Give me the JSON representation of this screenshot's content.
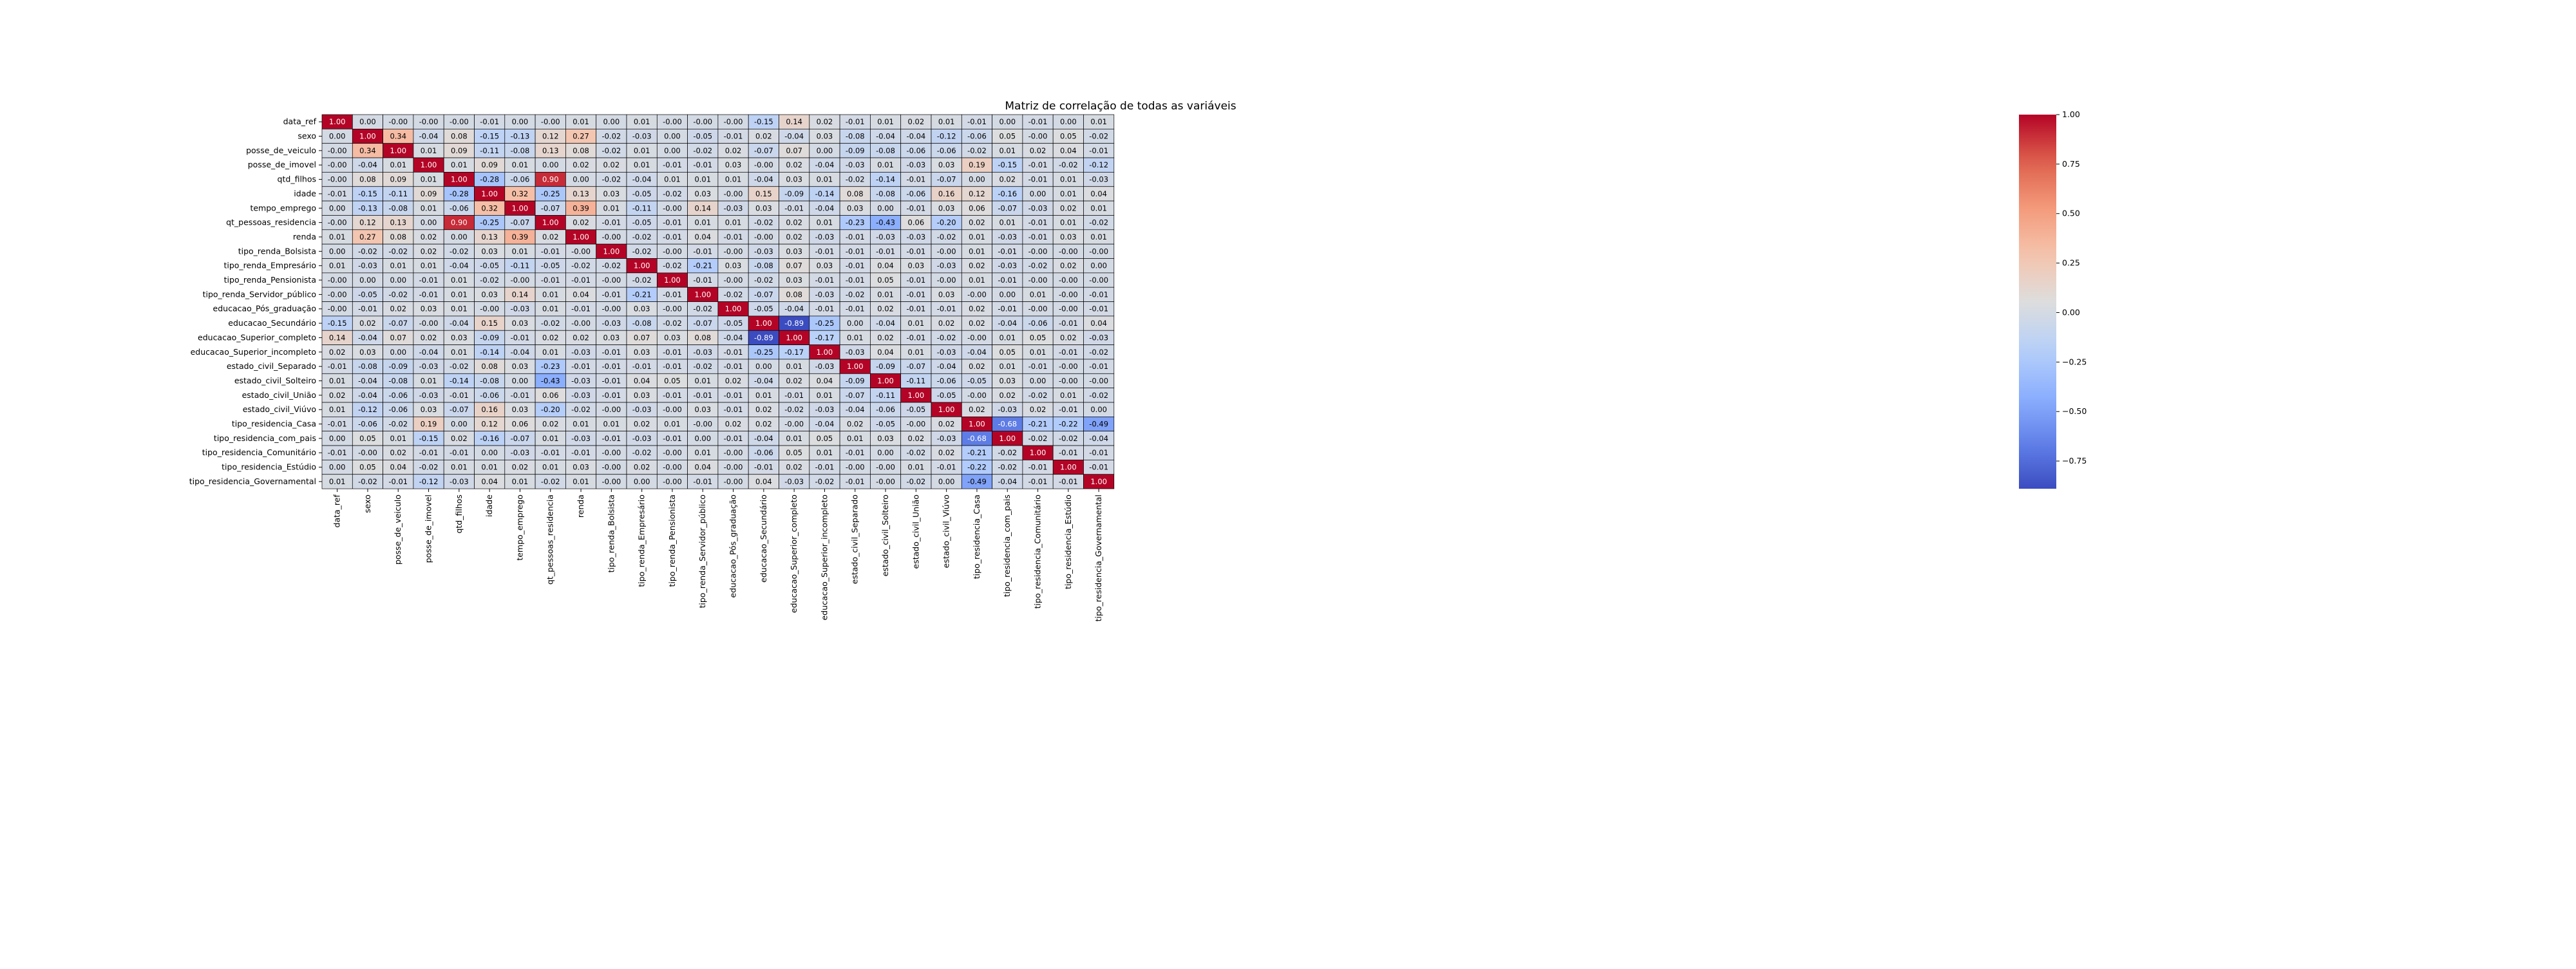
{
  "chart_data": {
    "type": "heatmap",
    "title": "Matriz de correlação de todas as variáveis",
    "row_labels": [
      "data_ref",
      "sexo",
      "posse_de_veiculo",
      "posse_de_imovel",
      "qtd_filhos",
      "idade",
      "tempo_emprego",
      "qt_pessoas_residencia",
      "renda",
      "tipo_renda_Bolsista",
      "tipo_renda_Empresário",
      "tipo_renda_Pensionista",
      "tipo_renda_Servidor_público",
      "educacao_Pós_graduação",
      "educacao_Secundário",
      "educacao_Superior_completo",
      "educacao_Superior_incompleto",
      "estado_civil_Separado",
      "estado_civil_Solteiro",
      "estado_civil_União",
      "estado_civil_Viúvo",
      "tipo_residencia_Casa",
      "tipo_residencia_com_pais",
      "tipo_residencia_Comunitário",
      "tipo_residencia_Estúdio",
      "tipo_residencia_Governamental"
    ],
    "col_labels": [
      "data_ref",
      "sexo",
      "posse_de_veiculo",
      "posse_de_imovel",
      "qtd_filhos",
      "idade",
      "tempo_emprego",
      "qt_pessoas_residencia",
      "renda",
      "tipo_renda_Bolsista",
      "tipo_renda_Empresário",
      "tipo_renda_Pensionista",
      "tipo_renda_Servidor_público",
      "educacao_Pós_graduação",
      "educacao_Secundário",
      "educacao_Superior_completo",
      "educacao_Superior_incompleto",
      "estado_civil_Separado",
      "estado_civil_Solteiro",
      "estado_civil_União",
      "estado_civil_Viúvo",
      "tipo_residencia_Casa",
      "tipo_residencia_com_pais",
      "tipo_residencia_Comunitário",
      "tipo_residencia_Estúdio",
      "tipo_residencia_Governamental"
    ],
    "values": [
      [
        "1.00",
        "0.00",
        "-0.00",
        "-0.00",
        "-0.00",
        "-0.01",
        "0.00",
        "-0.00",
        "0.01",
        "0.00",
        "0.01",
        "-0.00",
        "-0.00",
        "-0.00",
        "-0.15",
        "0.14",
        "0.02",
        "-0.01",
        "0.01",
        "0.02",
        "0.01",
        "-0.01",
        "0.00",
        "-0.01",
        "0.00",
        "0.01"
      ],
      [
        "0.00",
        "1.00",
        "0.34",
        "-0.04",
        "0.08",
        "-0.15",
        "-0.13",
        "0.12",
        "0.27",
        "-0.02",
        "-0.03",
        "0.00",
        "-0.05",
        "-0.01",
        "0.02",
        "-0.04",
        "0.03",
        "-0.08",
        "-0.04",
        "-0.04",
        "-0.12",
        "-0.06",
        "0.05",
        "-0.00",
        "0.05",
        "-0.02"
      ],
      [
        "-0.00",
        "0.34",
        "1.00",
        "0.01",
        "0.09",
        "-0.11",
        "-0.08",
        "0.13",
        "0.08",
        "-0.02",
        "0.01",
        "0.00",
        "-0.02",
        "0.02",
        "-0.07",
        "0.07",
        "0.00",
        "-0.09",
        "-0.08",
        "-0.06",
        "-0.06",
        "-0.02",
        "0.01",
        "0.02",
        "0.04",
        "-0.01"
      ],
      [
        "-0.00",
        "-0.04",
        "0.01",
        "1.00",
        "0.01",
        "0.09",
        "0.01",
        "0.00",
        "0.02",
        "0.02",
        "0.01",
        "-0.01",
        "-0.01",
        "0.03",
        "-0.00",
        "0.02",
        "-0.04",
        "-0.03",
        "0.01",
        "-0.03",
        "0.03",
        "0.19",
        "-0.15",
        "-0.01",
        "-0.02",
        "-0.12"
      ],
      [
        "-0.00",
        "0.08",
        "0.09",
        "0.01",
        "1.00",
        "-0.28",
        "-0.06",
        "0.90",
        "0.00",
        "-0.02",
        "-0.04",
        "0.01",
        "0.01",
        "0.01",
        "-0.04",
        "0.03",
        "0.01",
        "-0.02",
        "-0.14",
        "-0.01",
        "-0.07",
        "0.00",
        "0.02",
        "-0.01",
        "0.01",
        "-0.03"
      ],
      [
        "-0.01",
        "-0.15",
        "-0.11",
        "0.09",
        "-0.28",
        "1.00",
        "0.32",
        "-0.25",
        "0.13",
        "0.03",
        "-0.05",
        "-0.02",
        "0.03",
        "-0.00",
        "0.15",
        "-0.09",
        "-0.14",
        "0.08",
        "-0.08",
        "-0.06",
        "0.16",
        "0.12",
        "-0.16",
        "0.00",
        "0.01",
        "0.04"
      ],
      [
        "0.00",
        "-0.13",
        "-0.08",
        "0.01",
        "-0.06",
        "0.32",
        "1.00",
        "-0.07",
        "0.39",
        "0.01",
        "-0.11",
        "-0.00",
        "0.14",
        "-0.03",
        "0.03",
        "-0.01",
        "-0.04",
        "0.03",
        "0.00",
        "-0.01",
        "0.03",
        "0.06",
        "-0.07",
        "-0.03",
        "0.02",
        "0.01"
      ],
      [
        "-0.00",
        "0.12",
        "0.13",
        "0.00",
        "0.90",
        "-0.25",
        "-0.07",
        "1.00",
        "0.02",
        "-0.01",
        "-0.05",
        "-0.01",
        "0.01",
        "0.01",
        "-0.02",
        "0.02",
        "0.01",
        "-0.23",
        "-0.43",
        "0.06",
        "-0.20",
        "0.02",
        "0.01",
        "-0.01",
        "0.01",
        "-0.02"
      ],
      [
        "0.01",
        "0.27",
        "0.08",
        "0.02",
        "0.00",
        "0.13",
        "0.39",
        "0.02",
        "1.00",
        "-0.00",
        "-0.02",
        "-0.01",
        "0.04",
        "-0.01",
        "-0.00",
        "0.02",
        "-0.03",
        "-0.01",
        "-0.03",
        "-0.03",
        "-0.02",
        "0.01",
        "-0.03",
        "-0.01",
        "0.03",
        "0.01"
      ],
      [
        "0.00",
        "-0.02",
        "-0.02",
        "0.02",
        "-0.02",
        "0.03",
        "0.01",
        "-0.01",
        "-0.00",
        "1.00",
        "-0.02",
        "-0.00",
        "-0.01",
        "-0.00",
        "-0.03",
        "0.03",
        "-0.01",
        "-0.01",
        "-0.01",
        "-0.01",
        "-0.00",
        "0.01",
        "-0.01",
        "-0.00",
        "-0.00",
        "-0.00"
      ],
      [
        "0.01",
        "-0.03",
        "0.01",
        "0.01",
        "-0.04",
        "-0.05",
        "-0.11",
        "-0.05",
        "-0.02",
        "-0.02",
        "1.00",
        "-0.02",
        "-0.21",
        "0.03",
        "-0.08",
        "0.07",
        "0.03",
        "-0.01",
        "0.04",
        "0.03",
        "-0.03",
        "0.02",
        "-0.03",
        "-0.02",
        "0.02",
        "0.00"
      ],
      [
        "-0.00",
        "0.00",
        "0.00",
        "-0.01",
        "0.01",
        "-0.02",
        "-0.00",
        "-0.01",
        "-0.01",
        "-0.00",
        "-0.02",
        "1.00",
        "-0.01",
        "-0.00",
        "-0.02",
        "0.03",
        "-0.01",
        "-0.01",
        "0.05",
        "-0.01",
        "-0.00",
        "0.01",
        "-0.01",
        "-0.00",
        "-0.00",
        "-0.00"
      ],
      [
        "-0.00",
        "-0.05",
        "-0.02",
        "-0.01",
        "0.01",
        "0.03",
        "0.14",
        "0.01",
        "0.04",
        "-0.01",
        "-0.21",
        "-0.01",
        "1.00",
        "-0.02",
        "-0.07",
        "0.08",
        "-0.03",
        "-0.02",
        "0.01",
        "-0.01",
        "0.03",
        "-0.00",
        "0.00",
        "0.01",
        "-0.00",
        "-0.01"
      ],
      [
        "-0.00",
        "-0.01",
        "0.02",
        "0.03",
        "0.01",
        "-0.00",
        "-0.03",
        "0.01",
        "-0.01",
        "-0.00",
        "0.03",
        "-0.00",
        "-0.02",
        "1.00",
        "-0.05",
        "-0.04",
        "-0.01",
        "-0.01",
        "0.02",
        "-0.01",
        "-0.01",
        "0.02",
        "-0.01",
        "-0.00",
        "-0.00",
        "-0.01"
      ],
      [
        "-0.15",
        "0.02",
        "-0.07",
        "-0.00",
        "-0.04",
        "0.15",
        "0.03",
        "-0.02",
        "-0.00",
        "-0.03",
        "-0.08",
        "-0.02",
        "-0.07",
        "-0.05",
        "1.00",
        "-0.89",
        "-0.25",
        "0.00",
        "-0.04",
        "0.01",
        "0.02",
        "0.02",
        "-0.04",
        "-0.06",
        "-0.01",
        "0.04"
      ],
      [
        "0.14",
        "-0.04",
        "0.07",
        "0.02",
        "0.03",
        "-0.09",
        "-0.01",
        "0.02",
        "0.02",
        "0.03",
        "0.07",
        "0.03",
        "0.08",
        "-0.04",
        "-0.89",
        "1.00",
        "-0.17",
        "0.01",
        "0.02",
        "-0.01",
        "-0.02",
        "-0.00",
        "0.01",
        "0.05",
        "0.02",
        "-0.03"
      ],
      [
        "0.02",
        "0.03",
        "0.00",
        "-0.04",
        "0.01",
        "-0.14",
        "-0.04",
        "0.01",
        "-0.03",
        "-0.01",
        "0.03",
        "-0.01",
        "-0.03",
        "-0.01",
        "-0.25",
        "-0.17",
        "1.00",
        "-0.03",
        "0.04",
        "0.01",
        "-0.03",
        "-0.04",
        "0.05",
        "0.01",
        "-0.01",
        "-0.02"
      ],
      [
        "-0.01",
        "-0.08",
        "-0.09",
        "-0.03",
        "-0.02",
        "0.08",
        "0.03",
        "-0.23",
        "-0.01",
        "-0.01",
        "-0.01",
        "-0.01",
        "-0.02",
        "-0.01",
        "0.00",
        "0.01",
        "-0.03",
        "1.00",
        "-0.09",
        "-0.07",
        "-0.04",
        "0.02",
        "0.01",
        "-0.01",
        "-0.00",
        "-0.01"
      ],
      [
        "0.01",
        "-0.04",
        "-0.08",
        "0.01",
        "-0.14",
        "-0.08",
        "0.00",
        "-0.43",
        "-0.03",
        "-0.01",
        "0.04",
        "0.05",
        "0.01",
        "0.02",
        "-0.04",
        "0.02",
        "0.04",
        "-0.09",
        "1.00",
        "-0.11",
        "-0.06",
        "-0.05",
        "0.03",
        "0.00",
        "-0.00",
        "-0.00"
      ],
      [
        "0.02",
        "-0.04",
        "-0.06",
        "-0.03",
        "-0.01",
        "-0.06",
        "-0.01",
        "0.06",
        "-0.03",
        "-0.01",
        "0.03",
        "-0.01",
        "-0.01",
        "-0.01",
        "0.01",
        "-0.01",
        "0.01",
        "-0.07",
        "-0.11",
        "1.00",
        "-0.05",
        "-0.00",
        "0.02",
        "-0.02",
        "0.01",
        "-0.02"
      ],
      [
        "0.01",
        "-0.12",
        "-0.06",
        "0.03",
        "-0.07",
        "0.16",
        "0.03",
        "-0.20",
        "-0.02",
        "-0.00",
        "-0.03",
        "-0.00",
        "0.03",
        "-0.01",
        "0.02",
        "-0.02",
        "-0.03",
        "-0.04",
        "-0.06",
        "-0.05",
        "1.00",
        "0.02",
        "-0.03",
        "0.02",
        "-0.01",
        "0.00"
      ],
      [
        "-0.01",
        "-0.06",
        "-0.02",
        "0.19",
        "0.00",
        "0.12",
        "0.06",
        "0.02",
        "0.01",
        "0.01",
        "0.02",
        "0.01",
        "-0.00",
        "0.02",
        "0.02",
        "-0.00",
        "-0.04",
        "0.02",
        "-0.05",
        "-0.00",
        "0.02",
        "1.00",
        "-0.68",
        "-0.21",
        "-0.22",
        "-0.49"
      ],
      [
        "0.00",
        "0.05",
        "0.01",
        "-0.15",
        "0.02",
        "-0.16",
        "-0.07",
        "0.01",
        "-0.03",
        "-0.01",
        "-0.03",
        "-0.01",
        "0.00",
        "-0.01",
        "-0.04",
        "0.01",
        "0.05",
        "0.01",
        "0.03",
        "0.02",
        "-0.03",
        "-0.68",
        "1.00",
        "-0.02",
        "-0.02",
        "-0.04"
      ],
      [
        "-0.01",
        "-0.00",
        "0.02",
        "-0.01",
        "-0.01",
        "0.00",
        "-0.03",
        "-0.01",
        "-0.01",
        "-0.00",
        "-0.02",
        "-0.00",
        "0.01",
        "-0.00",
        "-0.06",
        "0.05",
        "0.01",
        "-0.01",
        "0.00",
        "-0.02",
        "0.02",
        "-0.21",
        "-0.02",
        "1.00",
        "-0.01",
        "-0.01"
      ],
      [
        "0.00",
        "0.05",
        "0.04",
        "-0.02",
        "0.01",
        "0.01",
        "0.02",
        "0.01",
        "0.03",
        "-0.00",
        "0.02",
        "-0.00",
        "0.04",
        "-0.00",
        "-0.01",
        "0.02",
        "-0.01",
        "-0.00",
        "-0.00",
        "0.01",
        "-0.01",
        "-0.22",
        "-0.02",
        "-0.01",
        "1.00",
        "-0.01"
      ],
      [
        "0.01",
        "-0.02",
        "-0.01",
        "-0.12",
        "-0.03",
        "0.04",
        "0.01",
        "-0.02",
        "0.01",
        "-0.00",
        "0.00",
        "-0.00",
        "-0.01",
        "-0.00",
        "0.04",
        "-0.03",
        "-0.02",
        "-0.01",
        "-0.00",
        "-0.02",
        "0.00",
        "-0.49",
        "-0.04",
        "-0.01",
        "-0.01",
        "1.00"
      ]
    ],
    "colormap": "coolwarm",
    "vmin": -0.89,
    "vmax": 1.0,
    "colorbar": {
      "ticks": [
        1.0,
        0.75,
        0.5,
        0.25,
        0.0,
        -0.25,
        -0.5,
        -0.75
      ],
      "tick_labels": [
        "1.00",
        "0.75",
        "0.50",
        "0.25",
        "0.00",
        "−0.25",
        "−0.50",
        "−0.75"
      ],
      "placement": "right"
    },
    "grid": true,
    "cell_border_color": "#000000"
  }
}
